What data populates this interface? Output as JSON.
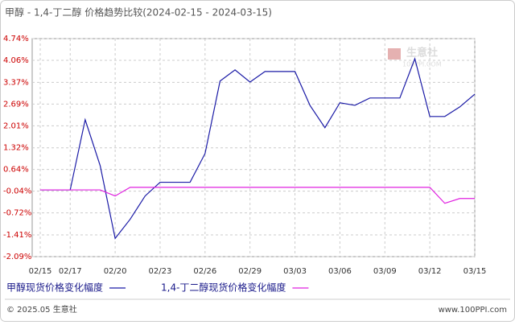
{
  "chart_data": {
    "type": "line",
    "title": "甲醇 - 1,4-丁二醇 价格趋势比较(2024-02-15 - 2024-03-15)",
    "categories": [
      "02/15",
      null,
      "02/17",
      null,
      null,
      "02/20",
      null,
      null,
      "02/23",
      null,
      null,
      "02/26",
      null,
      null,
      "02/29",
      null,
      null,
      "03/03",
      null,
      null,
      "03/06",
      null,
      null,
      "03/09",
      null,
      null,
      "03/12",
      null,
      null,
      "03/15"
    ],
    "series": [
      {
        "name": "甲醇现货价格变化幅度",
        "color": "#1a1aa6",
        "values": [
          0,
          0,
          0,
          2.2,
          0.76,
          -1.52,
          -0.92,
          -0.19,
          0.24,
          0.24,
          0.24,
          1.14,
          3.41,
          3.76,
          3.38,
          3.71,
          3.71,
          3.71,
          2.65,
          1.95,
          2.73,
          2.65,
          2.88,
          2.88,
          2.88,
          4.11,
          2.3,
          2.3,
          2.6,
          3.0
        ]
      },
      {
        "name": "1,4-丁二醇现货价格变化幅度",
        "color": "#e020e0",
        "values": [
          0,
          0,
          0,
          0,
          0,
          -0.19,
          0.08,
          0.08,
          0.08,
          0.08,
          0.08,
          0.08,
          0.08,
          0.08,
          0.08,
          0.08,
          0.08,
          0.08,
          0.08,
          0.08,
          0.08,
          0.08,
          0.08,
          0.08,
          0.08,
          0.08,
          0.08,
          -0.42,
          -0.27,
          -0.27
        ]
      }
    ],
    "ylim": [
      -2.09,
      4.74
    ],
    "yticks": [
      {
        "value": 4.74,
        "label": "4.74%"
      },
      {
        "value": 4.06,
        "label": "4.06%"
      },
      {
        "value": 3.37,
        "label": "3.37%"
      },
      {
        "value": 2.69,
        "label": "2.69%"
      },
      {
        "value": 2.01,
        "label": "2.01%"
      },
      {
        "value": 1.32,
        "label": "1.32%"
      },
      {
        "value": 0.64,
        "label": "0.64%"
      },
      {
        "value": -0.04,
        "label": "-0.04%"
      },
      {
        "value": -0.72,
        "label": "-0.72%"
      },
      {
        "value": -1.41,
        "label": "-1.41%"
      },
      {
        "value": -2.09,
        "label": "-2.09%"
      }
    ],
    "grid": true,
    "watermark": {
      "name": "生意社",
      "site": "100PPI.COM"
    },
    "footer": {
      "copyright": "© 2025.05 生意社",
      "site": "www.100PPI.com"
    }
  }
}
